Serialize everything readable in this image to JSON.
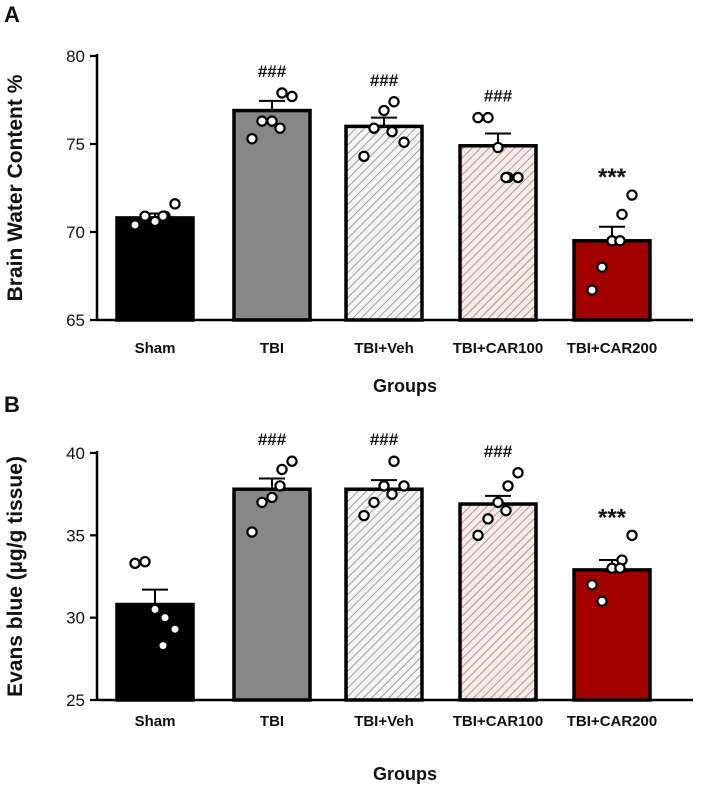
{
  "figure": {
    "panels": [
      "A",
      "B"
    ]
  },
  "chart_data": [
    {
      "panel": "A",
      "type": "bar",
      "title": "",
      "xlabel": "Groups",
      "ylabel": "Brain Water Content %",
      "ylim": [
        65,
        80
      ],
      "yticks": [
        65,
        70,
        75,
        80
      ],
      "categories": [
        "Sham",
        "TBI",
        "TBI+Veh",
        "TBI+CAR100",
        "TBI+CAR200"
      ],
      "values": [
        70.8,
        76.9,
        76.0,
        74.9,
        69.5
      ],
      "sem": [
        0.25,
        0.55,
        0.5,
        0.7,
        0.8
      ],
      "points": [
        [
          70.4,
          70.9,
          70.6,
          70.9,
          71.6,
          70.9
        ],
        [
          75.3,
          76.3,
          76.3,
          77.9,
          77.7,
          75.9
        ],
        [
          74.3,
          75.9,
          76.9,
          77.4,
          75.1,
          75.7
        ],
        [
          76.5,
          76.5,
          74.8,
          73.1,
          73.1,
          73.1
        ],
        [
          66.7,
          68.0,
          69.5,
          71.0,
          72.1,
          69.5
        ]
      ],
      "annotations": [
        "",
        "###",
        "###",
        "###",
        "***"
      ],
      "bar_colors": [
        "#000000",
        "#878787",
        "#f2f2f2",
        "#f1e1e1",
        "#a30000"
      ],
      "hatch": [
        false,
        false,
        true,
        true,
        false
      ]
    },
    {
      "panel": "B",
      "type": "bar",
      "title": "",
      "xlabel": "Groups",
      "ylabel": "Evans blue (µg/g tissue)",
      "ylim": [
        25,
        40
      ],
      "yticks": [
        25,
        30,
        35,
        40
      ],
      "categories": [
        "Sham",
        "TBI",
        "TBI+Veh",
        "TBI+CAR100",
        "TBI+CAR200"
      ],
      "values": [
        30.8,
        37.8,
        37.8,
        36.9,
        32.9
      ],
      "sem": [
        0.9,
        0.65,
        0.55,
        0.5,
        0.6
      ],
      "points": [
        [
          33.3,
          33.4,
          30.5,
          30.0,
          29.3,
          28.3
        ],
        [
          35.2,
          37.0,
          37.3,
          39.0,
          39.5,
          38.0
        ],
        [
          36.2,
          37.0,
          38.0,
          39.5,
          38.0,
          37.5
        ],
        [
          35.0,
          36.0,
          37.0,
          38.0,
          38.8,
          36.5
        ],
        [
          32.0,
          31.0,
          33.0,
          33.5,
          35.0,
          33.0
        ]
      ],
      "annotations": [
        "",
        "###",
        "###",
        "###",
        "***"
      ],
      "bar_colors": [
        "#000000",
        "#878787",
        "#f2f2f2",
        "#f1e1e1",
        "#a30000"
      ],
      "hatch": [
        false,
        false,
        true,
        true,
        false
      ]
    }
  ]
}
